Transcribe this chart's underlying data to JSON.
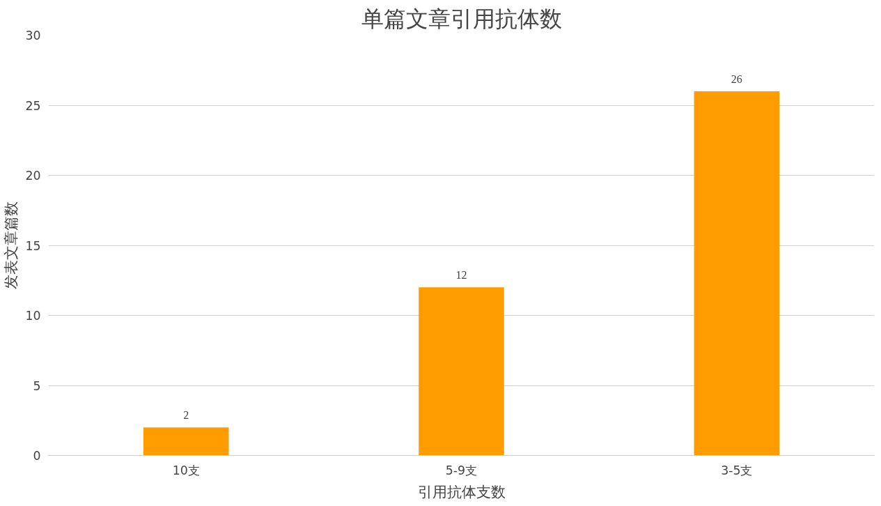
{
  "chart_data": {
    "type": "bar",
    "title": "单篇文章引用抗体数",
    "xlabel": "引用抗体支数",
    "ylabel": "发表文章篇数",
    "categories": [
      "10支",
      "5-9支",
      "3-5支"
    ],
    "values": [
      2,
      12,
      26
    ],
    "color": "#ff9d00",
    "ylim": [
      0,
      30
    ],
    "yticks": [
      0,
      5,
      10,
      15,
      20,
      25,
      30
    ],
    "grid": "y",
    "data_labels": true
  }
}
